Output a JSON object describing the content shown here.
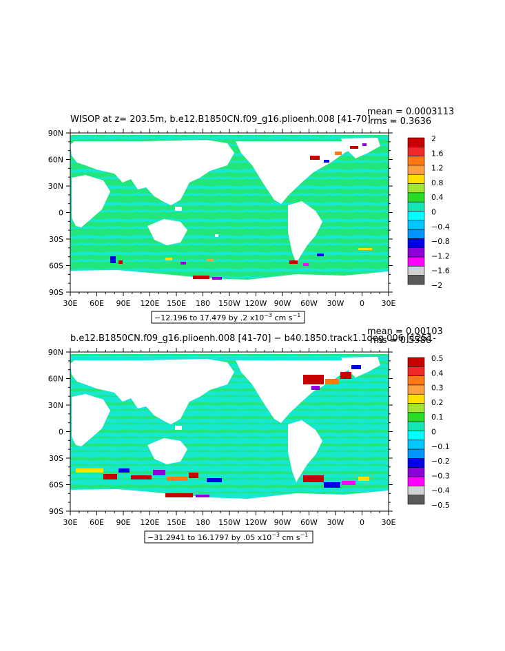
{
  "chart_data": [
    {
      "type": "heatmap",
      "title": "WISOP at z= 203.5m, b.e12.B1850CN.f09_g16.plioenh.008 [41-70]",
      "mean_label": "mean = 0.0003113",
      "rms_label": "rms = 0.3636",
      "range_label_main": "−12.196 to 17.479 by .2 x10",
      "range_label_exp": "−3",
      "range_label_units": " cm s",
      "range_label_units_exp": "−1",
      "x_ticks": [
        "30E",
        "60E",
        "90E",
        "120E",
        "150E",
        "180",
        "150W",
        "120W",
        "90W",
        "60W",
        "30W",
        "0",
        "30E"
      ],
      "y_ticks": [
        "90N",
        "60N",
        "30N",
        "0",
        "30S",
        "60S",
        "90S"
      ],
      "legend_labels": [
        "2",
        "1.6",
        "1.2",
        "0.8",
        "0.4",
        "0",
        "−0.4",
        "−0.8",
        "−1.2",
        "−1.6",
        "−2"
      ],
      "legend_colors": [
        "#c80000",
        "#f02828",
        "#ff7814",
        "#ffa040",
        "#ffe000",
        "#a0e632",
        "#28dc28",
        "#14e6b4",
        "#00ffff",
        "#00c8ff",
        "#0096ff",
        "#0000e6",
        "#8c00dc",
        "#ff00ff",
        "#d2d2d2",
        "#5a5a5a"
      ]
    },
    {
      "type": "heatmap",
      "title": "b.e12.B1850CN.f09_g16.plioenh.008 [41-70] − b40.1850.track1.1deg.006 [1251-",
      "mean_label": "mean = 0.00103",
      "rms_label": "rms = 0.5586",
      "range_label_main": "−31.2941 to 16.1797 by .05 x10",
      "range_label_exp": "−3",
      "range_label_units": " cm s",
      "range_label_units_exp": "−1",
      "x_ticks": [
        "30E",
        "60E",
        "90E",
        "120E",
        "150E",
        "180",
        "150W",
        "120W",
        "90W",
        "60W",
        "30W",
        "0",
        "30E"
      ],
      "y_ticks": [
        "90N",
        "60N",
        "30N",
        "0",
        "30S",
        "60S",
        "90S"
      ],
      "legend_labels": [
        "0.5",
        "0.4",
        "0.3",
        "0.2",
        "0.1",
        "0",
        "−0.1",
        "−0.2",
        "−0.3",
        "−0.4",
        "−0.5"
      ],
      "legend_colors": [
        "#c80000",
        "#f02828",
        "#ff7814",
        "#ffa040",
        "#ffe000",
        "#a0e632",
        "#28dc28",
        "#14e6b4",
        "#00ffff",
        "#00c8ff",
        "#0096ff",
        "#0000e6",
        "#8c00dc",
        "#ff00ff",
        "#d2d2d2",
        "#5a5a5a"
      ]
    }
  ],
  "colors": {
    "ocean_main": "#22e67a",
    "ocean_alt": "#17e8d2",
    "land": "#ffffff"
  }
}
